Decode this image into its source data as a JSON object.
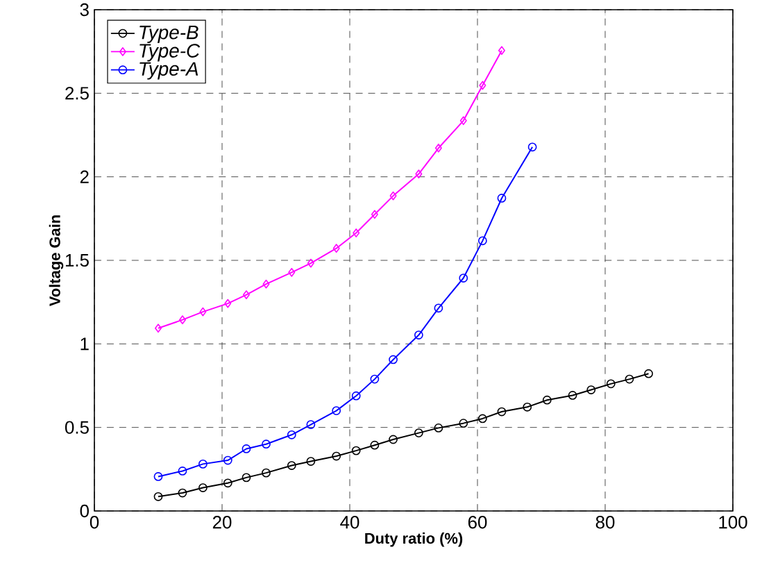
{
  "chart_data": {
    "type": "line",
    "xlabel": "Duty ratio (%)",
    "ylabel": "Voltage Gain",
    "xlim": [
      0,
      100
    ],
    "xticks": [
      0,
      20,
      40,
      60,
      80,
      100
    ],
    "ylim": [
      0,
      3
    ],
    "yticks": [
      0,
      0.5,
      1,
      1.5,
      2,
      2.5,
      3
    ],
    "grid": true,
    "legend": "top left",
    "line_style": "solid",
    "series": [
      {
        "name": "Type-B",
        "color": "#000000",
        "marker": "circle",
        "x": [
          10,
          13.8,
          17,
          20.9,
          23.8,
          26.9,
          30.9,
          33.9,
          37.9,
          41,
          43.9,
          46.8,
          50.8,
          53.9,
          57.8,
          60.8,
          63.8,
          67.8,
          70.9,
          74.9,
          77.8,
          80.9,
          83.8,
          86.8
        ],
        "values": [
          0.086,
          0.108,
          0.139,
          0.167,
          0.2,
          0.228,
          0.272,
          0.297,
          0.328,
          0.361,
          0.394,
          0.428,
          0.467,
          0.497,
          0.525,
          0.553,
          0.594,
          0.622,
          0.664,
          0.692,
          0.725,
          0.761,
          0.789,
          0.822
        ]
      },
      {
        "name": "Type-C",
        "color": "#ff00ff",
        "marker": "diamond",
        "x": [
          10,
          13.8,
          17,
          20.9,
          23.8,
          26.9,
          30.9,
          33.9,
          37.9,
          41,
          43.9,
          46.8,
          50.8,
          53.9,
          57.8,
          60.8,
          63.8
        ],
        "values": [
          1.094,
          1.144,
          1.192,
          1.242,
          1.294,
          1.358,
          1.428,
          1.483,
          1.572,
          1.664,
          1.775,
          1.886,
          2.017,
          2.172,
          2.336,
          2.547,
          2.756
        ]
      },
      {
        "name": "Type-A",
        "color": "#0000ff",
        "marker": "circle",
        "x": [
          10,
          13.8,
          17,
          20.9,
          23.8,
          26.9,
          30.9,
          33.9,
          37.9,
          41,
          43.9,
          46.8,
          50.8,
          53.9,
          57.8,
          60.8,
          63.8,
          68.6
        ],
        "values": [
          0.206,
          0.239,
          0.281,
          0.303,
          0.372,
          0.4,
          0.456,
          0.517,
          0.6,
          0.689,
          0.789,
          0.906,
          1.053,
          1.214,
          1.394,
          1.617,
          1.872,
          2.178
        ]
      }
    ]
  }
}
